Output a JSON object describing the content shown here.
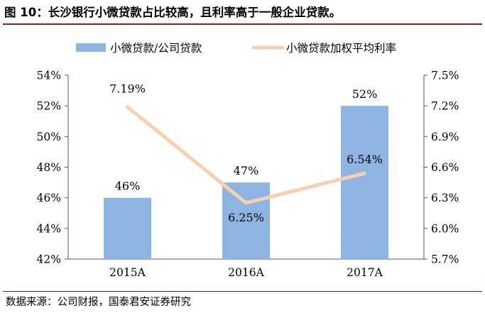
{
  "figure": {
    "title": "图 10：长沙银行小微贷款占比较高，且利率高于一般企业贷款。",
    "source": "数据来源：公司财报，国泰君安证券研究"
  },
  "chart_data": {
    "type": "bar",
    "categories": [
      "2015A",
      "2016A",
      "2017A"
    ],
    "series": [
      {
        "name": "小微贷款/公司贷款",
        "type": "bar",
        "axis": "left",
        "color": "#8eb4e3",
        "values": [
          46,
          47,
          52
        ],
        "labels": [
          "46%",
          "47%",
          "52%"
        ]
      },
      {
        "name": "小微贷款加权平均利率",
        "type": "line",
        "axis": "right",
        "color": "#f9cfae",
        "values": [
          7.19,
          6.25,
          6.54
        ],
        "labels": [
          "7.19%",
          "6.25%",
          "6.54%"
        ]
      }
    ],
    "y_left": {
      "min": 42,
      "max": 54,
      "step": 2,
      "ticks": [
        "42%",
        "44%",
        "46%",
        "48%",
        "50%",
        "52%",
        "54%"
      ]
    },
    "y_right": {
      "min": 5.7,
      "max": 7.5,
      "step": 0.3,
      "ticks": [
        "5.7%",
        "6.0%",
        "6.3%",
        "6.6%",
        "6.9%",
        "7.2%",
        "7.5%"
      ]
    },
    "legend_position": "top",
    "grid": false
  }
}
